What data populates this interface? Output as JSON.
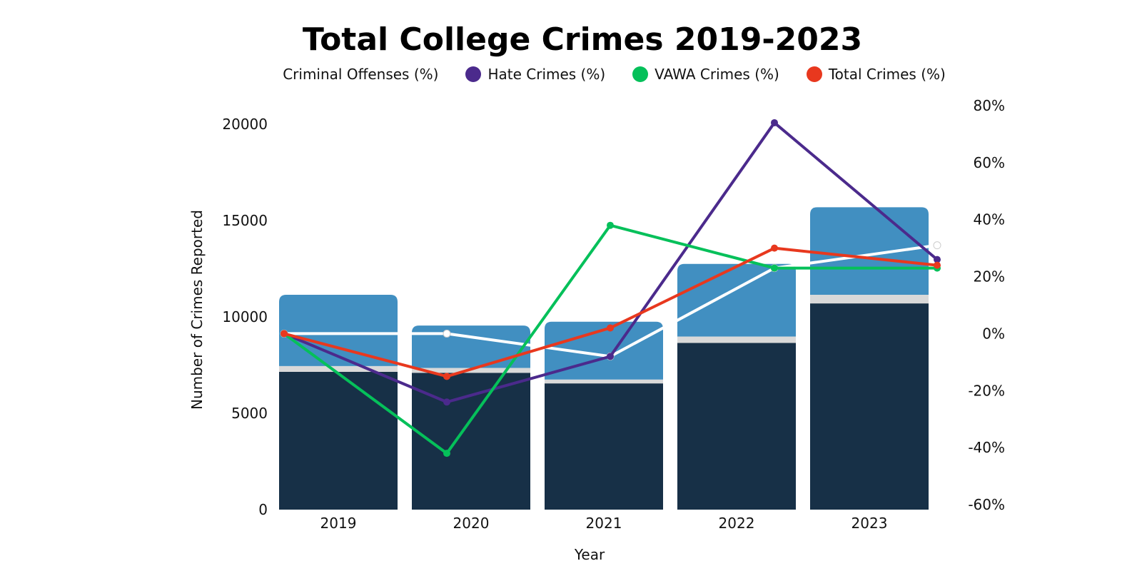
{
  "chart_data": {
    "type": "bar",
    "title": "Total College Crimes 2019-2023",
    "xlabel": "Year",
    "ylabel": "Number of Crimes Reported",
    "categories": [
      "2019",
      "2020",
      "2021",
      "2022",
      "2023"
    ],
    "ylim": [
      0,
      20000
    ],
    "yticks": [
      "0",
      "5000",
      "10000",
      "15000",
      "20000"
    ],
    "y2lim": [
      -60,
      80
    ],
    "y2ticks": [
      "-60%",
      "-40%",
      "-20%",
      "0%",
      "20%",
      "40%",
      "60%",
      "80%"
    ],
    "stacked": true,
    "bar_series": [
      {
        "color": "#173047",
        "values": [
          7150,
          7100,
          6550,
          8650,
          10700
        ]
      },
      {
        "color": "#d9d9d9",
        "values": [
          300,
          250,
          200,
          330,
          450
        ]
      },
      {
        "color": "#418fc1",
        "values": [
          3700,
          2200,
          3000,
          3770,
          4540
        ]
      }
    ],
    "line_series": [
      {
        "name": "Criminal Offenses (%)",
        "color": "#ffffff",
        "values": [
          0,
          0,
          -8,
          23,
          31
        ]
      },
      {
        "name": "Hate Crimes (%)",
        "color": "#4b2a8c",
        "values": [
          0,
          -24,
          -8,
          74,
          26
        ]
      },
      {
        "name": "VAWA Crimes (%)",
        "color": "#05c05a",
        "values": [
          0,
          -42,
          38,
          23,
          23
        ]
      },
      {
        "name": "Total Crimes (%)",
        "color": "#e8381e",
        "values": [
          0,
          -15,
          2,
          30,
          24
        ]
      }
    ],
    "legend": {
      "placement": "top",
      "items": [
        {
          "label": "Criminal Offenses (%)",
          "color": "#ffffff"
        },
        {
          "label": "Hate Crimes (%)",
          "color": "#4b2a8c"
        },
        {
          "label": "VAWA Crimes (%)",
          "color": "#05c05a"
        },
        {
          "label": "Total Crimes (%)",
          "color": "#e8381e"
        }
      ]
    },
    "grid": false
  }
}
